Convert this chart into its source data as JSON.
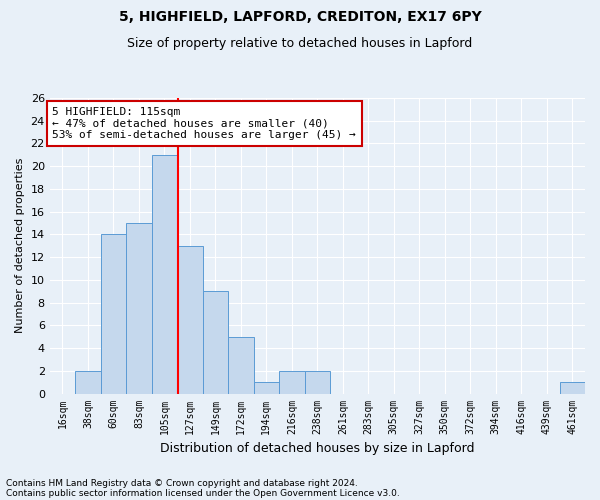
{
  "title1": "5, HIGHFIELD, LAPFORD, CREDITON, EX17 6PY",
  "title2": "Size of property relative to detached houses in Lapford",
  "xlabel": "Distribution of detached houses by size in Lapford",
  "ylabel": "Number of detached properties",
  "categories": [
    "16sqm",
    "38sqm",
    "60sqm",
    "83sqm",
    "105sqm",
    "127sqm",
    "149sqm",
    "172sqm",
    "194sqm",
    "216sqm",
    "238sqm",
    "261sqm",
    "283sqm",
    "305sqm",
    "327sqm",
    "350sqm",
    "372sqm",
    "394sqm",
    "416sqm",
    "439sqm",
    "461sqm"
  ],
  "values": [
    0,
    2,
    14,
    15,
    21,
    13,
    9,
    5,
    1,
    2,
    2,
    0,
    0,
    0,
    0,
    0,
    0,
    0,
    0,
    0,
    1
  ],
  "bar_color": "#c5d8ed",
  "bar_edge_color": "#5b9bd5",
  "red_line_x": 4.545,
  "ylim": [
    0,
    26
  ],
  "yticks": [
    0,
    2,
    4,
    6,
    8,
    10,
    12,
    14,
    16,
    18,
    20,
    22,
    24,
    26
  ],
  "annotation_line1": "5 HIGHFIELD: 115sqm",
  "annotation_line2": "← 47% of detached houses are smaller (40)",
  "annotation_line3": "53% of semi-detached houses are larger (45) →",
  "annotation_box_color": "#ffffff",
  "annotation_box_edge_color": "#cc0000",
  "footnote1": "Contains HM Land Registry data © Crown copyright and database right 2024.",
  "footnote2": "Contains public sector information licensed under the Open Government Licence v3.0.",
  "background_color": "#e8f0f8",
  "plot_background_color": "#e8f0f8",
  "grid_color": "#ffffff",
  "title1_fontsize": 10,
  "title2_fontsize": 9,
  "xlabel_fontsize": 9,
  "ylabel_fontsize": 8,
  "annotation_fontsize": 8,
  "footnote_fontsize": 6.5,
  "tick_fontsize": 8,
  "xtick_fontsize": 7
}
